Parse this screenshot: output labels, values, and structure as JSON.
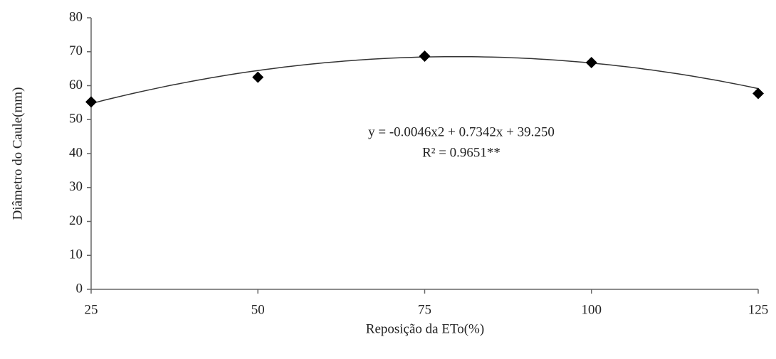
{
  "chart_data": {
    "type": "scatter",
    "x_label": "Reposição da ETo(%)",
    "y_label": "Diâmetro do Caule(mm)",
    "x": [
      25,
      50,
      75,
      100,
      125
    ],
    "values": [
      55.2,
      62.5,
      68.7,
      66.8,
      57.7
    ],
    "color": "#000000",
    "xlim": [
      25,
      125
    ],
    "xticks": [
      25,
      50,
      75,
      100,
      125
    ],
    "ylim": [
      0,
      80
    ],
    "yticks": [
      0,
      10,
      20,
      30,
      40,
      50,
      60,
      70,
      80
    ],
    "grid": false,
    "trendline": {
      "coefficients": [
        -0.0046,
        0.7342,
        39.25
      ],
      "equation": "y = -0.0046x2 + 0.7342x + 39.250",
      "r2_label": "R² = 0.9651**"
    }
  }
}
